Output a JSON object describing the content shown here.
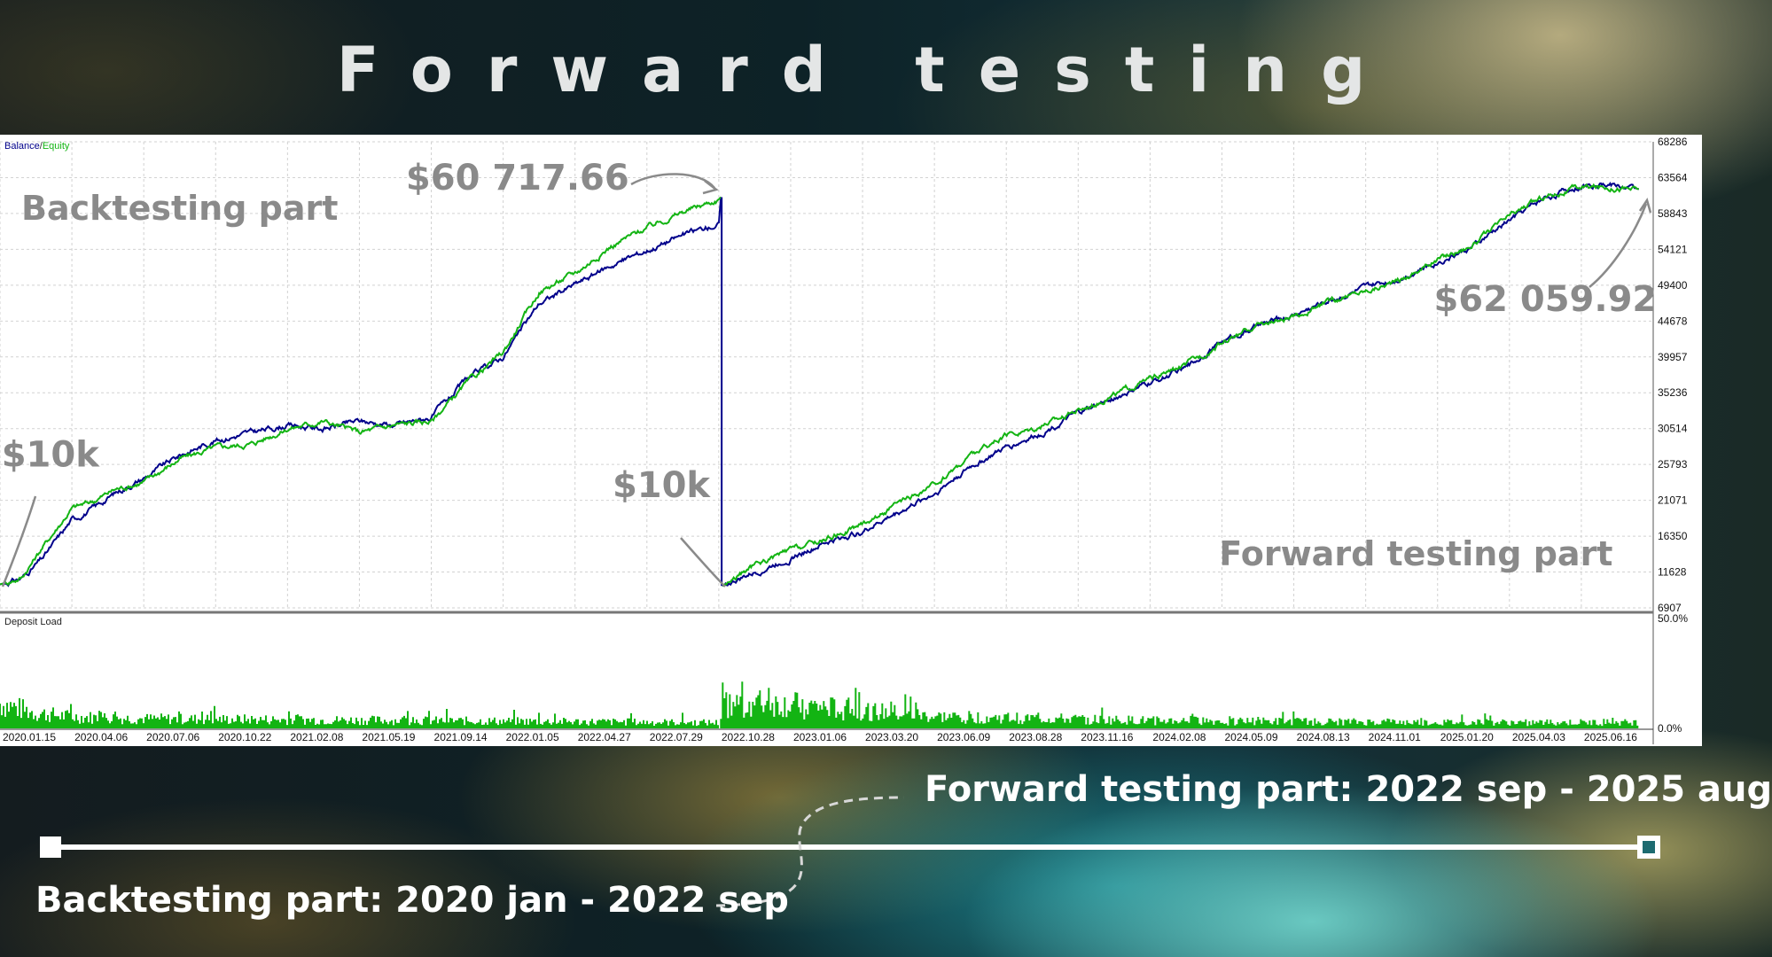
{
  "page": {
    "title": "Forward testing",
    "timeline": {
      "forward_label": "Forward testing part: 2022 sep - 2025 aug",
      "backtest_label": "Backtesting part: 2020 jan - 2022 sep"
    }
  },
  "chart_data": {
    "type": "line",
    "legend": {
      "balance": "Balance",
      "separator": "/",
      "equity": "Equity",
      "placement": "top-left"
    },
    "panel_label": "Deposit Load",
    "colors": {
      "balance": "#00008b",
      "equity": "#13b413",
      "deposit_load": "#13b413",
      "grid": "#d2d2d2"
    },
    "ylim": [
      6907,
      68286
    ],
    "y_ticks": [
      68286,
      63564,
      58843,
      54121,
      49400,
      44678,
      39957,
      35236,
      30514,
      25793,
      21071,
      16350,
      11628,
      6907
    ],
    "load_ylim": [
      0,
      50
    ],
    "load_ticks": [
      "50.0%",
      "0.0%"
    ],
    "x_ticks": [
      "2020.01.15",
      "2020.04.06",
      "2020.07.06",
      "2020.10.22",
      "2021.02.08",
      "2021.05.19",
      "2021.09.14",
      "2022.01.05",
      "2022.04.27",
      "2022.07.29",
      "2022.10.28",
      "2023.01.06",
      "2023.03.20",
      "2023.06.09",
      "2023.08.28",
      "2023.11.16",
      "2024.02.08",
      "2024.05.09",
      "2024.08.13",
      "2024.11.01",
      "2025.01.20",
      "2025.04.03",
      "2025.06.16"
    ],
    "series": [
      {
        "name": "Balance",
        "segment": "backtest",
        "x": [
          0,
          0.3,
          0.6,
          1,
          1.3,
          1.6,
          2,
          2.5,
          3,
          3.5,
          4,
          4.5,
          5,
          5.5,
          6,
          6.5,
          7,
          7.5,
          8,
          8.5,
          9,
          9.5,
          10,
          10.03
        ],
        "y": [
          10000,
          10800,
          13500,
          18500,
          20000,
          22000,
          24000,
          27000,
          29000,
          30000,
          31000,
          30500,
          31500,
          31000,
          32000,
          37000,
          40000,
          47000,
          49500,
          52000,
          54000,
          56000,
          57500,
          61000
        ]
      },
      {
        "name": "Equity",
        "segment": "backtest",
        "x": [
          0,
          0.3,
          0.6,
          1,
          1.3,
          1.6,
          2,
          2.5,
          3,
          3.5,
          4,
          4.5,
          5,
          5.5,
          6,
          6.5,
          7,
          7.5,
          8,
          8.5,
          9,
          9.5,
          10,
          10.03
        ],
        "y": [
          10000,
          10900,
          15000,
          20000,
          21000,
          22500,
          23500,
          26500,
          28000,
          28500,
          30500,
          31500,
          30000,
          31000,
          31500,
          36500,
          40500,
          48500,
          51000,
          54500,
          57000,
          59000,
          60700,
          61000
        ]
      },
      {
        "name": "Balance",
        "segment": "forward",
        "x": [
          10.05,
          10.5,
          11,
          11.5,
          12,
          12.5,
          13,
          13.5,
          14,
          14.5,
          15,
          15.5,
          16,
          16.5,
          17,
          17.5,
          18,
          18.5,
          19,
          19.5,
          20,
          20.5,
          21,
          21.5,
          22,
          22.4,
          22.8
        ],
        "y": [
          9800,
          11500,
          13500,
          15500,
          17000,
          19500,
          22000,
          25500,
          28000,
          30000,
          32500,
          34500,
          36500,
          38500,
          42000,
          44000,
          45500,
          47500,
          49000,
          50500,
          52500,
          54500,
          58000,
          61000,
          62500,
          62700,
          62060
        ]
      },
      {
        "name": "Equity",
        "segment": "forward",
        "x": [
          10.05,
          10.5,
          11,
          11.5,
          12,
          12.5,
          13,
          13.5,
          14,
          14.5,
          15,
          15.5,
          16,
          16.5,
          17,
          17.5,
          18,
          18.5,
          19,
          19.5,
          20,
          20.5,
          21,
          21.5,
          22,
          22.4,
          22.8
        ],
        "y": [
          9800,
          12500,
          14500,
          16000,
          18000,
          20500,
          23000,
          27000,
          29500,
          31000,
          33000,
          35000,
          37000,
          38800,
          41800,
          44200,
          45000,
          47300,
          48700,
          50200,
          52800,
          54800,
          58500,
          61200,
          62300,
          62400,
          62060
        ]
      }
    ],
    "deposit_load": [
      {
        "segment": "backtest",
        "x": [
          0,
          0.5,
          1,
          2,
          4,
          6,
          8,
          10
        ],
        "y": [
          13,
          8,
          6,
          5,
          4.5,
          4,
          3.5,
          3
        ]
      },
      {
        "segment": "forward",
        "x": [
          10.03,
          10.5,
          11,
          12,
          13,
          16,
          20,
          22.8
        ],
        "y": [
          12,
          13,
          12,
          9,
          6,
          4,
          3,
          3
        ]
      }
    ],
    "annotations": [
      {
        "text": "Backtesting part",
        "x": 2.5,
        "y": 58000
      },
      {
        "text": "$60 717.66",
        "x": 7.2,
        "y": 62000
      },
      {
        "text": "$10k",
        "x": 0.7,
        "y": 25500
      },
      {
        "text": "$10k",
        "x": 9.2,
        "y": 21500
      },
      {
        "text": "Forward testing part",
        "x": 19.7,
        "y": 12500
      },
      {
        "text": "$62 059.92",
        "x": 21.5,
        "y": 46000
      }
    ],
    "grid": true
  }
}
